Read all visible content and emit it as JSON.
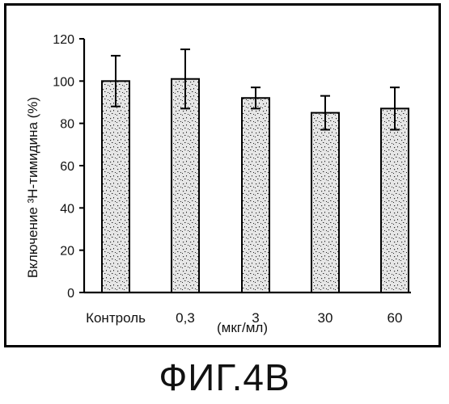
{
  "chart_data": {
    "type": "bar",
    "title": "",
    "ylabel": "Включение ³H-тимидина (%)",
    "xlabel": "(мкг/мл)",
    "categories": [
      "Контроль",
      "0,3",
      "3",
      "30",
      "60"
    ],
    "values": [
      100,
      101,
      92,
      85,
      87
    ],
    "error": [
      12,
      14,
      5,
      8,
      10
    ],
    "ylim": [
      0,
      120
    ],
    "yticks": [
      0,
      20,
      40,
      60,
      80,
      100,
      120
    ],
    "grid": false,
    "bar_color": "#e6e6e6",
    "speckle_color": "#2a2a2a"
  },
  "caption": "ФИГ.4B"
}
